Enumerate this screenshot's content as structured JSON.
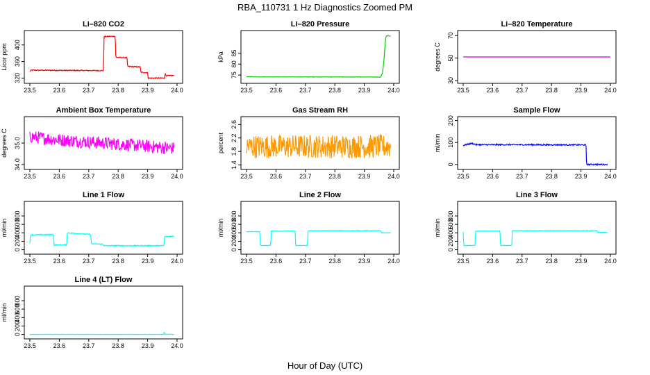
{
  "figure": {
    "title": "RBA_110731  1 Hz Diagnostics Zoomed PM",
    "xlabel": "Hour of Day (UTC)"
  },
  "chart_data": [
    {
      "type": "line",
      "title": "Li–820 CO2",
      "ylabel": "Licor ppm",
      "color": "#ff0000",
      "xlim": [
        23.5,
        24.0
      ],
      "ylim": [
        314,
        428
      ],
      "xticks": [
        "23.5",
        "23.6",
        "23.7",
        "23.8",
        "23.9",
        "24.0"
      ],
      "yticks": [
        "320",
        "360",
        "400"
      ],
      "noise": 1.2,
      "x": [
        23.5,
        23.505,
        23.75,
        23.752,
        23.79,
        23.792,
        23.83,
        23.832,
        23.875,
        23.877,
        23.9,
        23.902,
        23.957,
        23.96,
        23.962,
        23.99
      ],
      "y": [
        336,
        339,
        338,
        420,
        421,
        370,
        369,
        348,
        347,
        334,
        333,
        320,
        320,
        331,
        326,
        326
      ]
    },
    {
      "type": "line",
      "title": "Li–820 Pressure",
      "ylabel": "kPa",
      "color": "#00cc00",
      "xlim": [
        23.5,
        24.0
      ],
      "ylim": [
        72.5,
        94
      ],
      "xticks": [
        "23.5",
        "23.6",
        "23.7",
        "23.8",
        "23.9",
        "24.0"
      ],
      "yticks": [
        "75",
        "80",
        "85"
      ],
      "noise": 0.08,
      "x": [
        23.5,
        23.53,
        23.95,
        23.955,
        23.962,
        23.965,
        23.967,
        23.97,
        23.973,
        23.975,
        23.99
      ],
      "y": [
        74.3,
        74.2,
        74.1,
        74.0,
        76.0,
        79.5,
        82.0,
        88.0,
        92.0,
        92.8,
        92.8
      ]
    },
    {
      "type": "line",
      "title": "Li–820 Temperature",
      "ylabel": "degrees C",
      "color": "#cc00cc",
      "xlim": [
        23.5,
        24.0
      ],
      "ylim": [
        30,
        72
      ],
      "xticks": [
        "23.5",
        "23.6",
        "23.7",
        "23.8",
        "23.9",
        "24.0"
      ],
      "yticks": [
        "30",
        "50",
        "70"
      ],
      "noise": 0,
      "x": [
        23.5,
        24.0
      ],
      "y": [
        51,
        51
      ]
    },
    {
      "type": "line",
      "title": "Ambient Box Temperature",
      "ylabel": "degrees C",
      "color": "#ff00ff",
      "xlim": [
        23.5,
        24.0
      ],
      "ylim": [
        33.9,
        36.1
      ],
      "xticks": [
        "23.5",
        "23.6",
        "23.7",
        "23.8",
        "23.9",
        "24.0"
      ],
      "yticks": [
        "34.0",
        "35.0"
      ],
      "noise": 0.3,
      "x": [
        23.5,
        23.6,
        23.7,
        23.8,
        23.9,
        23.99
      ],
      "y": [
        35.3,
        35.15,
        35.05,
        34.95,
        34.85,
        34.75
      ]
    },
    {
      "type": "line",
      "title": "Gas Stream RH",
      "ylabel": "percent",
      "color": "#ff9900",
      "xlim": [
        23.5,
        24.0
      ],
      "ylim": [
        1.35,
        2.75
      ],
      "xticks": [
        "23.5",
        "23.6",
        "23.7",
        "23.8",
        "23.9",
        "24.0"
      ],
      "yticks": [
        "1.4",
        "1.8",
        "2.2",
        "2.6"
      ],
      "noise": 0.35,
      "x": [
        23.5,
        23.75,
        23.99
      ],
      "y": [
        1.95,
        1.95,
        1.95
      ]
    },
    {
      "type": "line",
      "title": "Sample Flow",
      "ylabel": "ml/min",
      "color": "#0000ff",
      "xlim": [
        23.5,
        24.0
      ],
      "ylim": [
        -10,
        205
      ],
      "xticks": [
        "23.5",
        "23.6",
        "23.7",
        "23.8",
        "23.9",
        "24.0"
      ],
      "yticks": [
        "0",
        "100",
        "200"
      ],
      "noise": 3,
      "x": [
        23.5,
        23.515,
        23.53,
        23.545,
        23.7,
        23.9,
        23.917,
        23.919,
        23.99
      ],
      "y": [
        87,
        92,
        96,
        90,
        90,
        89,
        89,
        0,
        0
      ]
    },
    {
      "type": "line",
      "title": "Line 1 Flow",
      "ylabel": "ml/min",
      "color": "#00ffff",
      "xlim": [
        23.5,
        24.0
      ],
      "ylim": [
        -40,
        1080
      ],
      "xticks": [
        "23.5",
        "23.6",
        "23.7",
        "23.8",
        "23.9",
        "24.0"
      ],
      "yticks": [
        "0",
        "200",
        "400",
        "600",
        "800"
      ],
      "noise": 12,
      "x": [
        23.5,
        23.502,
        23.58,
        23.582,
        23.625,
        23.627,
        23.707,
        23.709,
        23.75,
        23.752,
        23.955,
        23.958,
        23.99
      ],
      "y": [
        140,
        350,
        360,
        110,
        115,
        400,
        360,
        140,
        130,
        95,
        95,
        310,
        320
      ]
    },
    {
      "type": "line",
      "title": "Line 2 Flow",
      "ylabel": "ml/min",
      "color": "#00ffff",
      "xlim": [
        23.5,
        24.0
      ],
      "ylim": [
        -40,
        1080
      ],
      "xticks": [
        "23.5",
        "23.6",
        "23.7",
        "23.8",
        "23.9",
        "24.0"
      ],
      "yticks": [
        "0",
        "200",
        "400",
        "600",
        "800"
      ],
      "noise": 6,
      "x": [
        23.5,
        23.545,
        23.547,
        23.582,
        23.584,
        23.665,
        23.667,
        23.707,
        23.709,
        23.955,
        23.958,
        23.99
      ],
      "y": [
        430,
        430,
        100,
        100,
        440,
        440,
        100,
        100,
        450,
        450,
        400,
        400
      ]
    },
    {
      "type": "line",
      "title": "Line 3 Flow",
      "ylabel": "ml/min",
      "color": "#00ffff",
      "xlim": [
        23.5,
        24.0
      ],
      "ylim": [
        -40,
        1080
      ],
      "xticks": [
        "23.5",
        "23.6",
        "23.7",
        "23.8",
        "23.9",
        "24.0"
      ],
      "yticks": [
        "0",
        "200",
        "400",
        "600",
        "800"
      ],
      "noise": 6,
      "x": [
        23.5,
        23.502,
        23.54,
        23.542,
        23.625,
        23.627,
        23.665,
        23.667,
        23.955,
        23.958,
        23.99
      ],
      "y": [
        430,
        100,
        100,
        440,
        440,
        100,
        100,
        450,
        450,
        410,
        410
      ]
    },
    {
      "type": "line",
      "title": "Line 4 (LT) Flow",
      "ylabel": "ml/min",
      "color": "#00ffff",
      "xlim": [
        23.5,
        24.0
      ],
      "ylim": [
        -40,
        1080
      ],
      "xticks": [
        "23.5",
        "23.6",
        "23.7",
        "23.8",
        "23.9",
        "24.0"
      ],
      "yticks": [
        "0",
        "200",
        "400",
        "600",
        "800"
      ],
      "noise": 3,
      "x": [
        23.5,
        23.955,
        23.956,
        23.958,
        23.99
      ],
      "y": [
        0,
        0,
        80,
        5,
        0
      ]
    }
  ]
}
